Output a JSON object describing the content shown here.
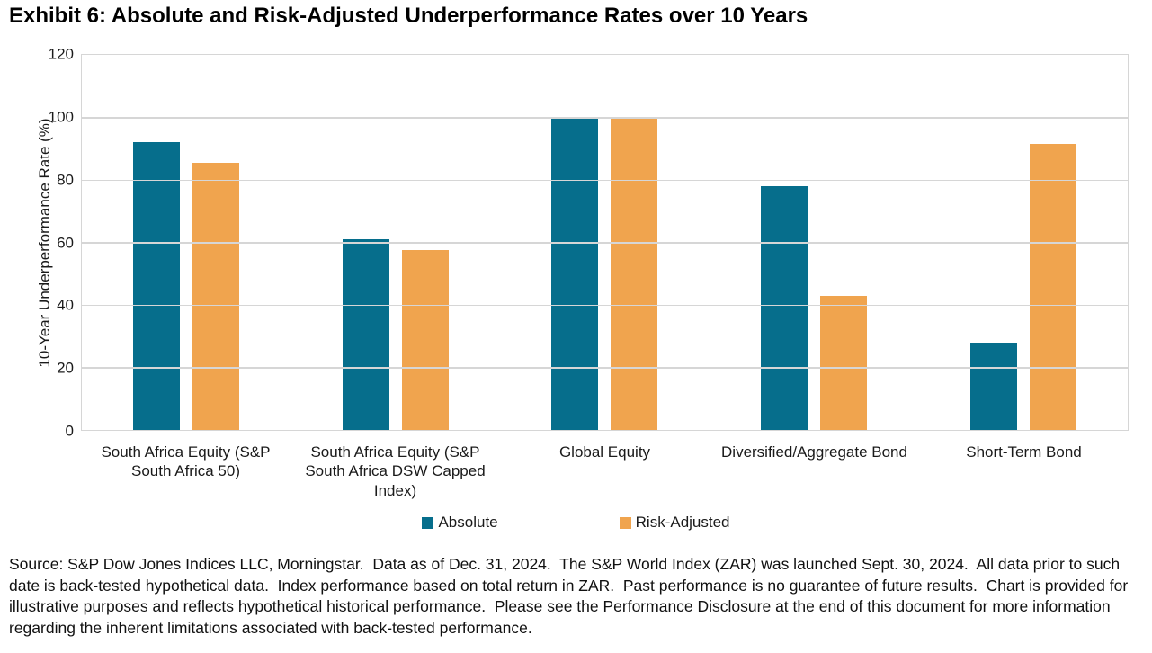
{
  "title": "Exhibit 6: Absolute and Risk-Adjusted Underperformance Rates over 10 Years",
  "chart_data": {
    "type": "bar",
    "title": "Exhibit 6: Absolute and Risk-Adjusted Underperformance Rates over 10 Years",
    "xlabel": "",
    "ylabel": "10-Year Underperformance Rate (%)",
    "ylim": [
      0,
      120
    ],
    "yticks": [
      0,
      20,
      40,
      60,
      80,
      100,
      120
    ],
    "grid": true,
    "legend_position": "bottom",
    "categories": [
      "South Africa Equity (S&P South Africa 50)",
      "South Africa Equity (S&P South Africa DSW Capped Index)",
      "Global Equity",
      "Diversified/Aggregate Bond",
      "Short-Term Bond"
    ],
    "series": [
      {
        "name": "Absolute",
        "color": "#066E8C",
        "values": [
          92,
          61,
          100,
          78,
          28
        ]
      },
      {
        "name": "Risk-Adjusted",
        "color": "#F0A44E",
        "values": [
          85.5,
          57.5,
          100,
          43,
          91.5
        ]
      }
    ]
  },
  "footer": {
    "source_text": "Source: S&P Dow Jones Indices LLC, Morningstar.  Data as of Dec. 31, 2024.  The S&P World Index (ZAR) was launched Sept. 30, 2024.  All data prior to such date is back-tested hypothetical data.  Index performance based on total return in ZAR.  Past performance is no guarantee of future results.  Chart is provided for illustrative purposes and reflects hypothetical historical performance.  Please see the Performance Disclosure at the end of this document for more information regarding the inherent limitations associated with back-tested performance."
  }
}
